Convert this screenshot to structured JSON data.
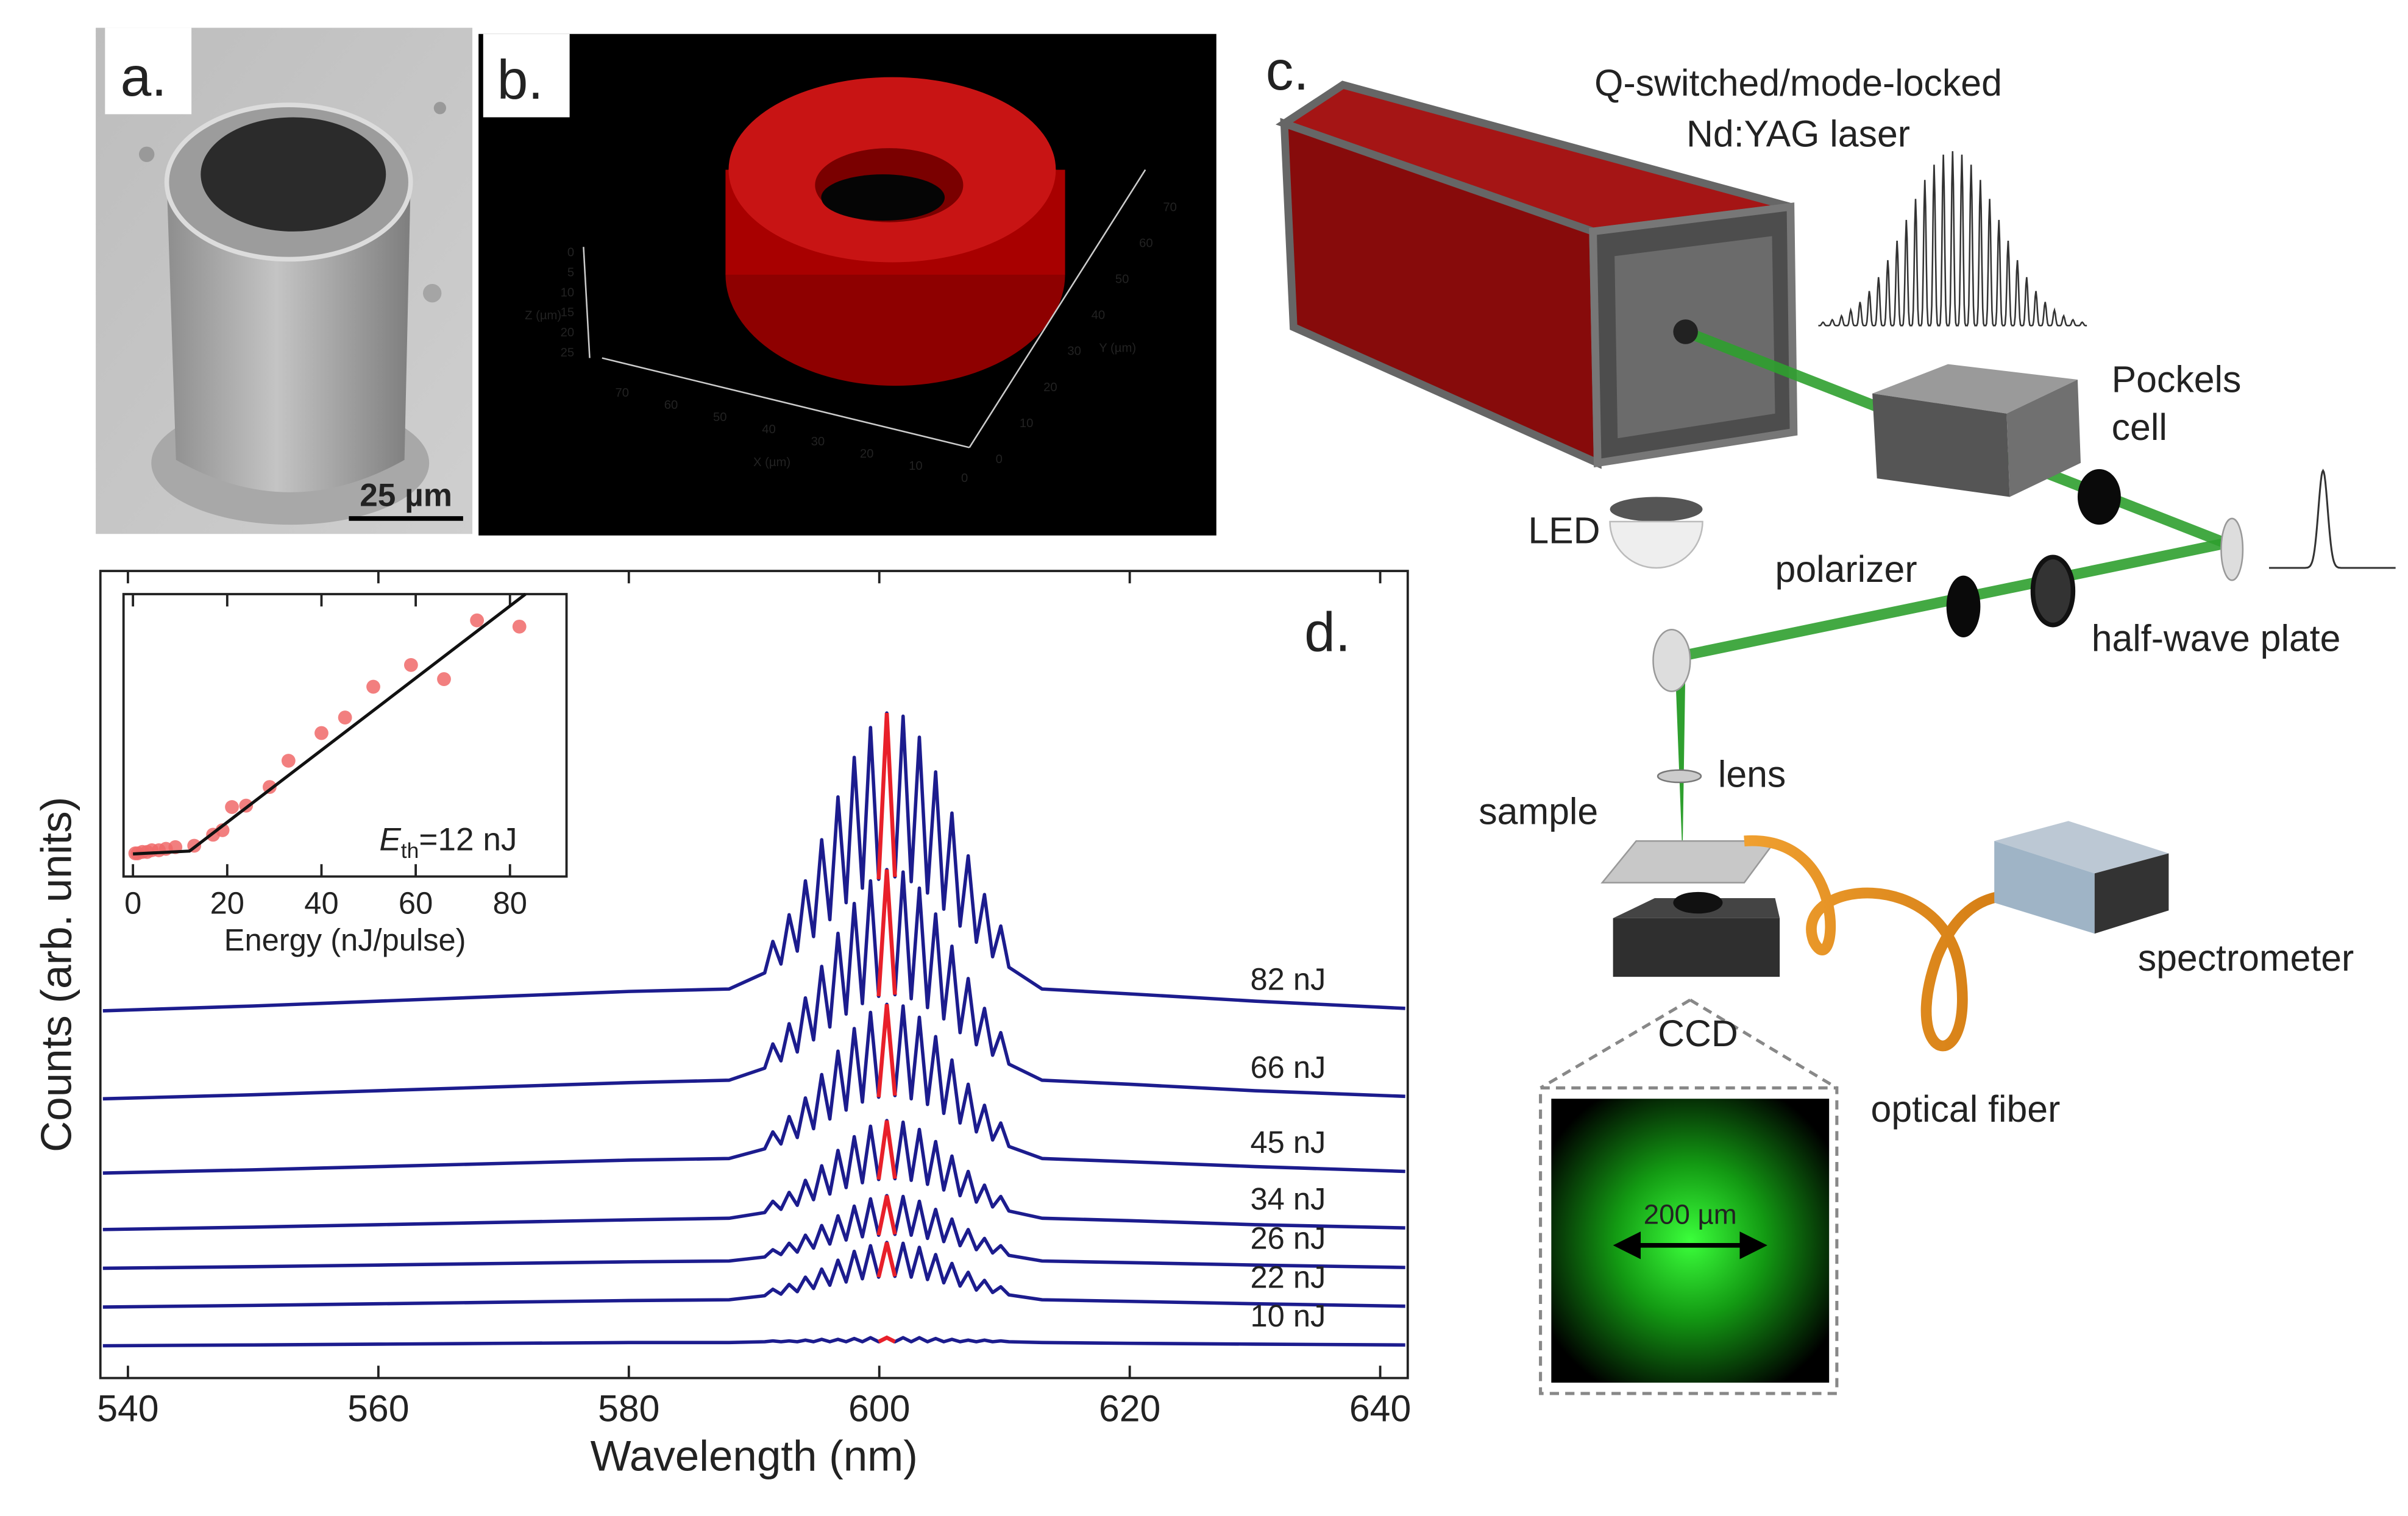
{
  "panels": {
    "a": {
      "label": "a.",
      "scale_bar": "25 µm"
    },
    "b": {
      "label": "b.",
      "z_axis": "Z (µm)",
      "z_ticks": [
        0,
        5,
        10,
        15,
        20,
        25
      ],
      "x_axis": "X (µm)",
      "x_ticks": [
        70,
        60,
        50,
        40,
        30,
        20,
        10,
        0
      ],
      "y_axis": "Y (µm)",
      "y_ticks": [
        0,
        10,
        20,
        30,
        40,
        50,
        60,
        70
      ]
    },
    "c": {
      "label": "c.",
      "laser": [
        "Q-switched/mode-locked",
        "Nd:YAG laser"
      ],
      "pockels_cell": [
        "Pockels",
        "cell"
      ],
      "led": "LED",
      "polarizer": "polarizer",
      "half_wave_plate": "half-wave plate",
      "lens": "lens",
      "sample": "sample",
      "ccd": "CCD",
      "optical_fiber": "optical fiber",
      "spectrometer": "spectrometer",
      "image_scale": "200 µm"
    }
  },
  "chart_data": [
    {
      "type": "line",
      "panel_label": "d.",
      "xlabel": "Wavelength (nm)",
      "ylabel": "Counts (arb. units)",
      "xlim": [
        537.8,
        642.2
      ],
      "xticks": [
        540,
        560,
        580,
        600,
        620,
        640
      ],
      "ylim": [
        0,
        100
      ],
      "highlight": {
        "color": "#e8202a",
        "xlim": [
          599.95,
          601.25
        ]
      },
      "x": [
        538,
        550,
        560,
        570,
        580,
        588,
        590.85,
        591.5,
        592.15,
        592.8,
        593.45,
        594.1,
        594.75,
        595.4,
        596.05,
        596.7,
        597.35,
        598.0,
        598.65,
        599.3,
        599.95,
        600.6,
        601.25,
        601.9,
        602.55,
        603.2,
        603.85,
        604.5,
        605.15,
        605.8,
        606.45,
        607.1,
        607.75,
        608.4,
        609.05,
        609.7,
        610.35,
        613,
        620,
        630,
        642
      ],
      "series": [
        {
          "name": "82 nJ",
          "color": "#1c1c8e",
          "values": [
            45.5,
            46.1,
            46.7,
            47.3,
            47.9,
            48.2,
            50.2,
            54.1,
            51.3,
            57.4,
            52.9,
            61.6,
            54.7,
            66.7,
            56.8,
            72.0,
            58.9,
            76.9,
            60.7,
            80.6,
            61.8,
            82.4,
            62.1,
            82.0,
            61.5,
            79.4,
            60.1,
            75.1,
            58.1,
            70.0,
            56.0,
            64.7,
            54.0,
            59.9,
            52.2,
            56.0,
            50.9,
            48.2,
            47.6,
            46.7,
            45.8
          ]
        },
        {
          "name": "66 nJ",
          "color": "#1c1c8e",
          "values": [
            34.6,
            35.1,
            35.6,
            36.1,
            36.6,
            36.9,
            38.4,
            41.4,
            39.3,
            43.9,
            40.4,
            47.1,
            41.9,
            51.0,
            43.5,
            55.1,
            45.1,
            58.8,
            46.4,
            61.6,
            47.3,
            63.0,
            47.5,
            62.7,
            47.0,
            60.7,
            45.9,
            57.5,
            44.5,
            53.5,
            42.8,
            49.5,
            41.3,
            45.8,
            40.0,
            42.8,
            38.9,
            36.9,
            36.4,
            35.6,
            34.9
          ]
        },
        {
          "name": "45 nJ",
          "color": "#1c1c8e",
          "values": [
            25.4,
            25.8,
            26.2,
            26.6,
            27.0,
            27.2,
            28.4,
            30.5,
            29.0,
            32.4,
            29.8,
            34.7,
            30.9,
            37.6,
            32.1,
            40.5,
            33.2,
            43.3,
            34.2,
            45.3,
            34.8,
            46.3,
            35.0,
            46.1,
            34.6,
            44.7,
            33.9,
            42.3,
            32.8,
            39.4,
            31.6,
            36.4,
            30.5,
            33.8,
            29.5,
            31.6,
            28.7,
            27.2,
            26.8,
            26.2,
            25.6
          ]
        },
        {
          "name": "34 nJ",
          "color": "#1c1c8e",
          "values": [
            18.4,
            18.7,
            19.0,
            19.3,
            19.6,
            19.8,
            20.5,
            21.9,
            20.9,
            23.0,
            21.4,
            24.5,
            22.1,
            26.3,
            22.8,
            28.2,
            23.6,
            29.9,
            24.2,
            31.2,
            24.6,
            31.9,
            24.7,
            31.7,
            24.5,
            30.8,
            24.0,
            29.3,
            23.3,
            27.5,
            22.6,
            25.6,
            21.8,
            23.9,
            21.2,
            22.5,
            20.7,
            19.8,
            19.5,
            19.0,
            18.6
          ]
        },
        {
          "name": "26 nJ",
          "color": "#1c1c8e",
          "values": [
            13.6,
            13.8,
            14.0,
            14.2,
            14.4,
            14.5,
            15.0,
            15.9,
            15.3,
            16.7,
            15.6,
            17.7,
            16.1,
            18.9,
            16.6,
            20.1,
            17.1,
            21.3,
            17.5,
            22.2,
            17.7,
            22.6,
            17.8,
            22.5,
            17.7,
            21.9,
            17.3,
            20.9,
            16.9,
            19.7,
            16.4,
            18.4,
            15.9,
            17.3,
            15.5,
            16.4,
            15.2,
            14.5,
            14.3,
            14.0,
            13.7
          ]
        },
        {
          "name": "22 nJ",
          "color": "#1c1c8e",
          "values": [
            8.8,
            9.0,
            9.2,
            9.4,
            9.6,
            9.7,
            10.2,
            11.0,
            10.4,
            11.6,
            10.7,
            12.5,
            11.1,
            13.5,
            11.5,
            14.6,
            11.9,
            15.7,
            12.3,
            16.4,
            12.5,
            16.8,
            12.6,
            16.7,
            12.5,
            16.2,
            12.2,
            15.3,
            11.8,
            14.2,
            11.4,
            13.1,
            10.9,
            12.1,
            10.6,
            11.3,
            10.3,
            9.7,
            9.5,
            9.2,
            8.9
          ]
        },
        {
          "name": "10 nJ",
          "color": "#1c1c8e",
          "values": [
            4.0,
            4.1,
            4.2,
            4.3,
            4.4,
            4.4,
            4.5,
            4.6,
            4.5,
            4.6,
            4.5,
            4.7,
            4.5,
            4.8,
            4.5,
            4.8,
            4.5,
            4.9,
            4.5,
            5.0,
            4.5,
            5.0,
            4.5,
            5.0,
            4.5,
            5.0,
            4.5,
            4.9,
            4.5,
            4.8,
            4.5,
            4.7,
            4.5,
            4.7,
            4.5,
            4.6,
            4.5,
            4.4,
            4.3,
            4.2,
            4.1
          ]
        }
      ]
    },
    {
      "type": "scatter",
      "xlabel": "Energy (nJ/pulse)",
      "xlim": [
        -2,
        92
      ],
      "xticks": [
        0,
        20,
        40,
        60,
        80
      ],
      "ylim": [
        0,
        100
      ],
      "color": "#f06868",
      "x": [
        0.5,
        1,
        2,
        3,
        4,
        5.5,
        7,
        9,
        13,
        17,
        19,
        21,
        24,
        29,
        33,
        40,
        45,
        51,
        59,
        66,
        73,
        82
      ],
      "values": [
        8.2,
        8.2,
        8.7,
        8.7,
        9.3,
        9.3,
        9.8,
        10.4,
        10.9,
        14.8,
        16.4,
        24.6,
        25.1,
        31.7,
        41.0,
        50.8,
        56.3,
        67.2,
        74.9,
        69.9,
        90.7,
        88.5
      ],
      "fit": {
        "color": "#111111",
        "x": [
          0,
          12,
          83.3
        ],
        "values": [
          8,
          9,
          100
        ]
      },
      "annotation": {
        "symbol": "E",
        "subscript": "th",
        "text": "=12 nJ"
      }
    }
  ]
}
